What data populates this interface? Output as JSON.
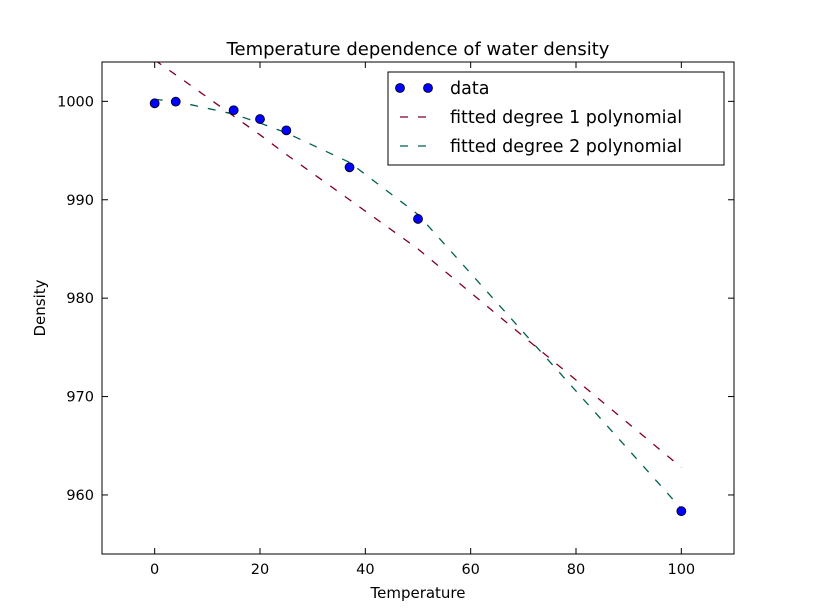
{
  "chart_data": {
    "type": "line",
    "title": "Temperature dependence of water density",
    "xlabel": "Temperature",
    "ylabel": "Density",
    "xlim": [
      -10,
      110
    ],
    "ylim": [
      954,
      1004
    ],
    "xticks": [
      0,
      20,
      40,
      60,
      80,
      100
    ],
    "yticks": [
      960,
      970,
      980,
      990,
      1000
    ],
    "xtick_labels": [
      "0",
      "20",
      "40",
      "60",
      "80",
      "100"
    ],
    "ytick_labels": [
      "960",
      "970",
      "980",
      "990",
      "1000"
    ],
    "grid": false,
    "legend_position": "top-right",
    "series": [
      {
        "name": "data",
        "style": "markers",
        "color": "#0000ff",
        "x": [
          0,
          4,
          15,
          20,
          25,
          37,
          50,
          100
        ],
        "y": [
          999.8,
          999.97,
          999.1,
          998.2,
          997.05,
          993.3,
          988.05,
          958.35
        ]
      },
      {
        "name": "fitted degree 1 polynomial",
        "style": "dashed",
        "color": "#800020",
        "x": [
          0,
          4,
          15,
          20,
          25,
          37,
          50,
          100
        ],
        "y": [
          1004.2,
          1002.7,
          998.5,
          996.6,
          994.6,
          990.0,
          985.0,
          962.8
        ]
      },
      {
        "name": "fitted degree 2 polynomial",
        "style": "dashed",
        "color": "#006050",
        "x": [
          0,
          4,
          15,
          20,
          25,
          37,
          50,
          100
        ],
        "y": [
          1000.2,
          1000.0,
          998.7,
          997.8,
          996.8,
          993.8,
          988.5,
          958.6
        ]
      }
    ]
  }
}
